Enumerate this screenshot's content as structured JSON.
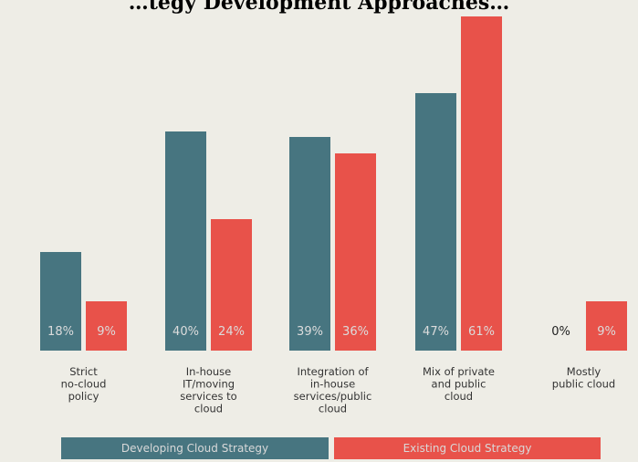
{
  "colors": {
    "developing": "#477580",
    "existing": "#e8524a",
    "background": "#eeede6",
    "bar_label": "#dcdcdc",
    "category_label": "#333333",
    "zero_label": "#222222"
  },
  "chart_data": {
    "type": "bar",
    "title": "…tegy Development Approaches…",
    "categories": [
      [
        "Strict",
        "no-cloud",
        "policy"
      ],
      [
        "In-house",
        "IT/moving",
        "services to",
        "cloud"
      ],
      [
        "Integration of",
        "in-house",
        "services/public",
        "cloud"
      ],
      [
        "Mix of private",
        "and public",
        "cloud"
      ],
      [
        "Mostly",
        "public cloud"
      ]
    ],
    "series": [
      {
        "name": "Developing Cloud Strategy",
        "values": [
          18,
          40,
          39,
          47,
          0
        ],
        "labels": [
          "18%",
          "40%",
          "39%",
          "47%",
          "0%"
        ]
      },
      {
        "name": "Existing Cloud Strategy",
        "values": [
          9,
          24,
          36,
          61,
          9
        ],
        "labels": [
          "9%",
          "24%",
          "36%",
          "61%",
          "9%"
        ]
      }
    ],
    "legend_position": "bottom",
    "grid": false,
    "ylim": [
      0,
      65
    ]
  }
}
